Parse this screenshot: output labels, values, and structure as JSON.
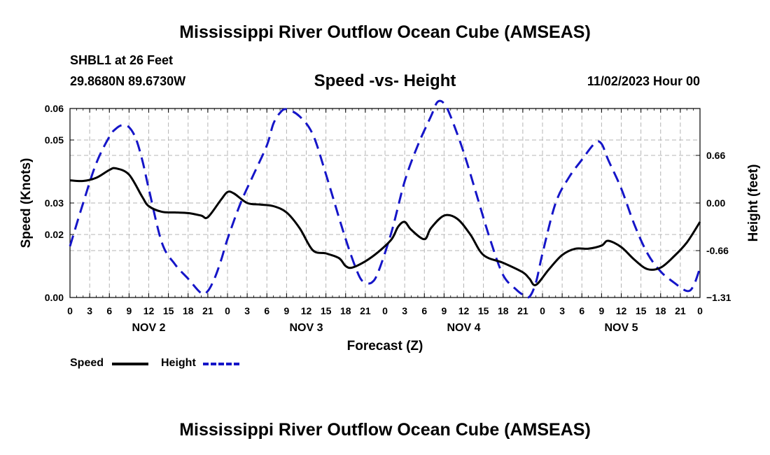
{
  "header": {
    "title": "Mississippi River Outflow Ocean Cube (AMSEAS)",
    "station": "SHBL1 at 26 Feet",
    "coords": "29.8680N  89.6730W",
    "subtitle": "Speed -vs- Height",
    "datetime": "11/02/2023 Hour 00"
  },
  "footer": {
    "title": "Mississippi River Outflow Ocean Cube (AMSEAS)"
  },
  "legend": {
    "speed_label": "Speed",
    "height_label": "Height"
  },
  "colors": {
    "speed": "#000000",
    "height": "#1515c8",
    "grid": "#b4b4b4"
  },
  "chart_data": {
    "type": "line",
    "title": "Speed -vs- Height",
    "xlabel": "Forecast (Z)",
    "ylabel": "Speed (Knots)",
    "y2label": "Height (feet)",
    "x_range_hours": [
      0,
      96
    ],
    "ylim": [
      0,
      0.06
    ],
    "y2lim": [
      -1.31,
      1.31
    ],
    "yticks": [
      0.0,
      0.02,
      0.03,
      0.05,
      0.06
    ],
    "yticks_labels": [
      "0.00",
      "0.02",
      "0.03",
      "0.05",
      "0.06"
    ],
    "y2ticks": [
      0.66,
      0.0,
      -0.66,
      -1.31
    ],
    "y2ticks_labels": [
      "0.66",
      "0.00",
      "-0.66",
      "−1.31"
    ],
    "xtick_labels": [
      "0",
      "3",
      "6",
      "9",
      "12",
      "15",
      "18",
      "21",
      "0",
      "3",
      "6",
      "9",
      "12",
      "15",
      "18",
      "21",
      "0",
      "3",
      "6",
      "9",
      "12",
      "15",
      "18",
      "21",
      "0",
      "3",
      "6",
      "9",
      "12",
      "15",
      "18",
      "21",
      "0"
    ],
    "day_labels": [
      "NOV 2",
      "NOV 3",
      "NOV 4",
      "NOV 5"
    ],
    "grid": true,
    "series": [
      {
        "name": "Speed",
        "axis": "left",
        "style": "solid",
        "x": [
          0,
          2,
          4,
          6,
          7,
          9,
          11,
          12,
          14,
          16,
          18,
          20,
          21,
          23,
          24,
          25,
          27,
          29,
          31,
          33,
          35,
          37,
          39,
          41,
          42,
          43,
          45,
          47,
          49,
          50,
          51,
          52,
          54,
          55,
          57,
          59,
          61,
          63,
          66,
          69,
          70,
          71,
          73,
          75,
          77,
          79,
          81,
          82,
          84,
          86,
          88,
          90,
          92,
          94,
          96
        ],
        "y": [
          0.0372,
          0.037,
          0.038,
          0.0405,
          0.041,
          0.039,
          0.032,
          0.029,
          0.0272,
          0.027,
          0.0268,
          0.026,
          0.0255,
          0.031,
          0.0335,
          0.033,
          0.03,
          0.0295,
          0.029,
          0.027,
          0.022,
          0.015,
          0.014,
          0.0125,
          0.01,
          0.0095,
          0.0115,
          0.0145,
          0.0185,
          0.0225,
          0.024,
          0.0215,
          0.0185,
          0.022,
          0.026,
          0.025,
          0.02,
          0.0135,
          0.011,
          0.008,
          0.006,
          0.004,
          0.009,
          0.0135,
          0.0155,
          0.0155,
          0.0165,
          0.018,
          0.016,
          0.012,
          0.009,
          0.0095,
          0.013,
          0.0175,
          0.024
        ]
      },
      {
        "name": "Height",
        "axis": "right",
        "style": "dashed",
        "x": [
          0,
          2,
          4,
          6,
          7,
          8,
          9,
          10,
          11,
          12,
          14,
          16,
          18,
          20,
          21,
          22,
          23,
          24,
          26,
          28,
          30,
          31,
          32,
          33,
          35,
          37,
          39,
          42,
          44,
          45,
          46,
          47,
          49,
          51,
          53,
          55,
          56,
          57,
          58,
          60,
          62,
          64,
          66,
          68,
          69,
          70,
          71,
          72,
          74,
          76,
          78,
          80,
          81,
          82,
          84,
          86,
          88,
          90,
          92,
          94,
          95,
          96
        ],
        "y": [
          -0.6,
          0.0,
          0.55,
          0.92,
          1.03,
          1.08,
          1.05,
          0.9,
          0.6,
          0.2,
          -0.55,
          -0.85,
          -1.05,
          -1.25,
          -1.22,
          -1.05,
          -0.8,
          -0.5,
          0.0,
          0.4,
          0.8,
          1.1,
          1.25,
          1.3,
          1.2,
          0.95,
          0.4,
          -0.5,
          -1.0,
          -1.1,
          -1.1,
          -0.95,
          -0.4,
          0.3,
          0.8,
          1.2,
          1.4,
          1.38,
          1.2,
          0.7,
          0.1,
          -0.5,
          -1.0,
          -1.2,
          -1.27,
          -1.3,
          -1.1,
          -0.7,
          0.0,
          0.35,
          0.6,
          0.83,
          0.82,
          0.6,
          0.2,
          -0.3,
          -0.7,
          -0.95,
          -1.1,
          -1.22,
          -1.15,
          -0.9
        ]
      }
    ]
  }
}
